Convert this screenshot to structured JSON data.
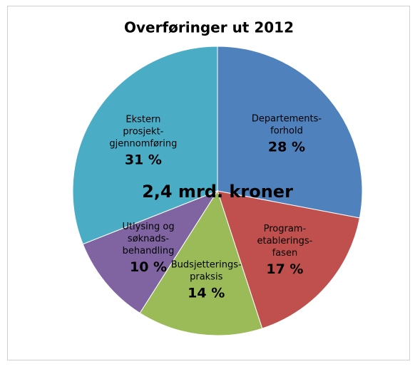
{
  "chart_data": {
    "type": "pie",
    "title": "Overføringer ut 2012",
    "annotation": "2,4 mrd. kroner",
    "categories": [
      [
        "Departements-",
        "forhold"
      ],
      [
        "Program-",
        "etablerings-",
        "fasen"
      ],
      [
        "Budsjetterings-",
        "praksis"
      ],
      [
        "Utlysing og",
        "søknads-",
        "behandling"
      ],
      [
        "Ekstern",
        "prosjekt-",
        "gjennomføring"
      ]
    ],
    "values": [
      28,
      17,
      14,
      10,
      31
    ],
    "value_labels": [
      "28 %",
      "17 %",
      "14 %",
      "10 %",
      "31 %"
    ],
    "colors": [
      "#4f81bd",
      "#c0504d",
      "#9bbb59",
      "#8064a2",
      "#4bacc6"
    ]
  }
}
